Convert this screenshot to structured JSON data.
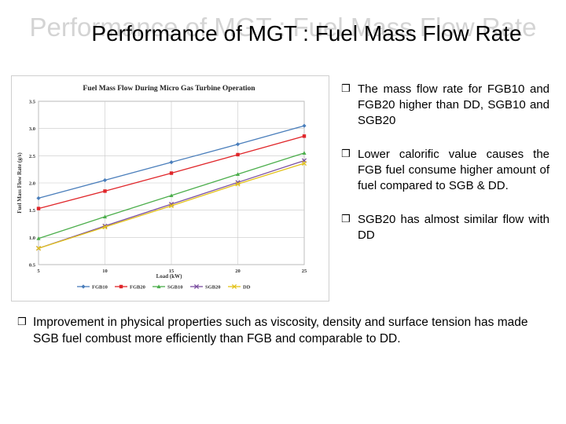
{
  "slide": {
    "title": "Performance of MGT : Fuel Mass Flow Rate",
    "bullets": [
      "The mass flow rate for FGB10 and FGB20 higher than DD, SGB10 and SGB20",
      "Lower calorific value causes the FGB fuel consume higher amount of fuel compared to SGB & DD.",
      "SGB20 has almost similar flow with DD"
    ],
    "bottom_text": "Improvement in physical properties such as viscosity, density and surface tension has made SGB fuel combust more efficiently than FGB and comparable to DD."
  },
  "icons": {
    "bullet": "checkbox-bullet-icon"
  },
  "chart_data": {
    "type": "line",
    "title": "Fuel Mass Flow During Micro Gas Turbine Operation",
    "xlabel": "Load (kW)",
    "ylabel": "Fuel Mass Flow Rate (g/s)",
    "x": [
      5,
      10,
      15,
      20,
      25
    ],
    "xlim": [
      5,
      25
    ],
    "ylim": [
      0.5,
      3.5
    ],
    "xticks": [
      "5",
      "10",
      "15",
      "20",
      "25"
    ],
    "yticks": [
      "0.5",
      "1.0",
      "1.5",
      "2.0",
      "2.5",
      "3.0",
      "3.5"
    ],
    "grid": true,
    "legend_position": "bottom",
    "series": [
      {
        "name": "FGB10",
        "values": [
          1.72,
          2.05,
          2.38,
          2.71,
          3.05
        ],
        "color": "#4a7ebb",
        "marker": "diamond"
      },
      {
        "name": "FGB20",
        "values": [
          1.53,
          1.85,
          2.18,
          2.52,
          2.86
        ],
        "color": "#e0262a",
        "marker": "square"
      },
      {
        "name": "SGB10",
        "values": [
          0.98,
          1.38,
          1.77,
          2.16,
          2.55
        ],
        "color": "#4cae4c",
        "marker": "triangle"
      },
      {
        "name": "SGB20",
        "values": [
          0.8,
          1.21,
          1.61,
          2.01,
          2.41
        ],
        "color": "#7b4fa0",
        "marker": "x"
      },
      {
        "name": "DD",
        "values": [
          0.8,
          1.19,
          1.58,
          1.98,
          2.36
        ],
        "color": "#e3c21a",
        "marker": "x"
      }
    ]
  }
}
